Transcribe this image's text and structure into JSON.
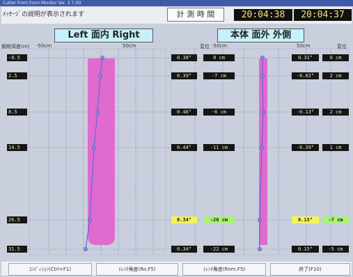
{
  "window": {
    "title": "Cutter Front Form Monitor  Ver. 3.7.0D"
  },
  "message": "ﾒｯｾｰｼﾞの説明が表示されます",
  "measure_label": "計 測 時 間",
  "clock": {
    "current": "20:04:38",
    "measure": "20:04:37"
  },
  "headers": {
    "left": "Left  面内 Right",
    "right": "本体  面外 外側"
  },
  "axis": {
    "depth_label": "掘削深度(m)",
    "left_neg": "-50cm",
    "left_pos": "50cm",
    "disp1": "変位",
    "neg1": "-50cm",
    "pos2": "50cm",
    "disp2": "変位"
  },
  "colors": {
    "band": "#e06bcf",
    "line": "#5a6cd8",
    "grid": "#404fa0"
  },
  "rows": [
    {
      "depth": "-0.5",
      "ang1": "0.38°",
      "disp1": "0 cm",
      "ang2": "0.31°",
      "disp2": "0 cm"
    },
    {
      "depth": "2.5",
      "ang1": "0.39°",
      "disp1": "-7 cm",
      "ang2": "-0.02°",
      "disp2": "2 cm"
    },
    {
      "depth": "8.5",
      "ang1": "0.46°",
      "disp1": "-6 cm",
      "ang2": "-0.13°",
      "disp2": "2 cm"
    },
    {
      "depth": "14.5",
      "ang1": "0.44°",
      "disp1": "-11 cm",
      "ang2": "-0.39°",
      "disp2": "1 cm"
    },
    {
      "depth": "26.5",
      "ang1": "0.34°",
      "disp1": "-20 cm",
      "ang2": "0.15°",
      "disp2": "-7 cm"
    },
    {
      "depth": "31.5",
      "ang1": "0.34°",
      "disp1": "-22 cm",
      "ang2": "0.15°",
      "disp2": "-5 cm"
    }
  ],
  "buttons": [
    "ｺﾝﾃﾞｨｼｮﾝ(Ctrl+F1)",
    "ﾄﾚﾝﾁ角度(Ro.F5)",
    "ﾄﾚﾝﾁ角度(Rnm.F5)",
    "終了(F10)"
  ]
}
